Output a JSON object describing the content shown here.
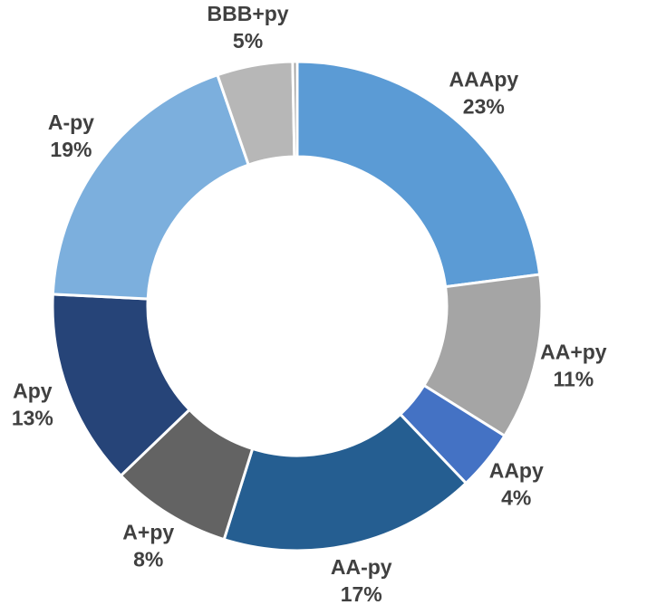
{
  "chart_data": {
    "type": "donut",
    "categories": [
      "AAApy",
      "AA+py",
      "AApy",
      "AA-py",
      "A+py",
      "Apy",
      "A-py",
      "BBB+py",
      null
    ],
    "values": [
      23,
      11,
      4,
      17,
      8,
      13,
      19,
      5,
      0.3
    ],
    "value_labels": [
      "23%",
      "11%",
      "4%",
      "17%",
      "8%",
      "13%",
      "19%",
      "5%",
      null
    ],
    "colors": [
      "#5b9bd5",
      "#a5a5a5",
      "#4472c4",
      "#255e91",
      "#636363",
      "#264478",
      "#7cafdd",
      "#b7b7b7",
      "#a5a5a5"
    ]
  }
}
